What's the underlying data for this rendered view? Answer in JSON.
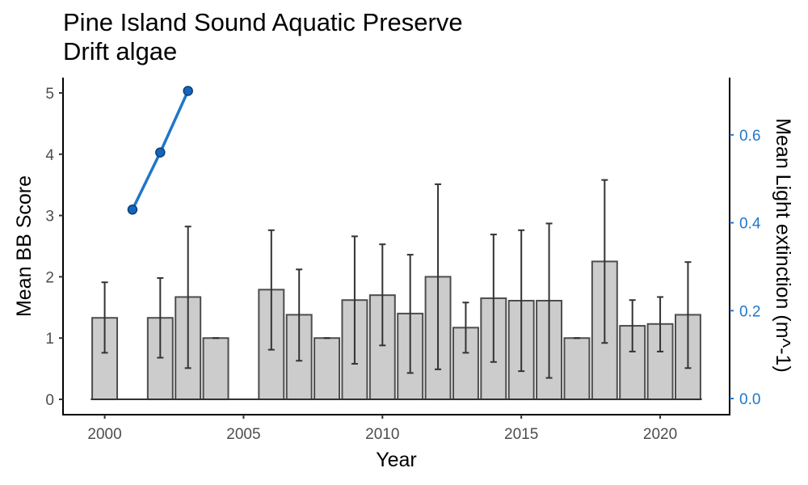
{
  "chart_data": {
    "type": "bar",
    "title": "Pine Island Sound Aquatic Preserve",
    "subtitle": "Drift algae",
    "xlabel": "Year",
    "ylabel": "Mean BB Score",
    "y2label": "Mean Light extinction (m^-1)",
    "xlim": [
      1998.5,
      2022.5
    ],
    "ylim": [
      -0.25,
      5.25
    ],
    "y2lim": [
      -0.0367,
      0.7303
    ],
    "x_ticks": [
      "2000",
      "2005",
      "2010",
      "2015",
      "2020"
    ],
    "y_ticks": [
      "0",
      "1",
      "2",
      "3",
      "4",
      "5"
    ],
    "y2_ticks": [
      "0.0",
      "0.2",
      "0.4",
      "0.6"
    ],
    "grid": false,
    "colors": {
      "bar_fill": "#cccccc",
      "bar_stroke": "#4d4d4d",
      "errorbar": "#333333",
      "line": "#1f77c9",
      "point_fill": "#1565c0",
      "point_stroke": "#0d3f73",
      "right_axis": "#1f77c9"
    },
    "bars": [
      {
        "year": 2000,
        "mean": 1.33,
        "lo": 0.76,
        "hi": 1.91
      },
      {
        "year": 2002,
        "mean": 1.33,
        "lo": 0.68,
        "hi": 1.98
      },
      {
        "year": 2003,
        "mean": 1.67,
        "lo": 0.51,
        "hi": 2.82
      },
      {
        "year": 2004,
        "mean": 1.0,
        "lo": 1.0,
        "hi": 1.0
      },
      {
        "year": 2006,
        "mean": 1.79,
        "lo": 0.81,
        "hi": 2.76
      },
      {
        "year": 2007,
        "mean": 1.38,
        "lo": 0.63,
        "hi": 2.12
      },
      {
        "year": 2008,
        "mean": 1.0,
        "lo": 1.0,
        "hi": 1.0
      },
      {
        "year": 2009,
        "mean": 1.62,
        "lo": 0.58,
        "hi": 2.66
      },
      {
        "year": 2010,
        "mean": 1.7,
        "lo": 0.88,
        "hi": 2.53
      },
      {
        "year": 2011,
        "mean": 1.4,
        "lo": 0.43,
        "hi": 2.36
      },
      {
        "year": 2012,
        "mean": 2.0,
        "lo": 0.49,
        "hi": 3.51
      },
      {
        "year": 2013,
        "mean": 1.17,
        "lo": 0.76,
        "hi": 1.58
      },
      {
        "year": 2014,
        "mean": 1.65,
        "lo": 0.61,
        "hi": 2.69
      },
      {
        "year": 2015,
        "mean": 1.61,
        "lo": 0.46,
        "hi": 2.76
      },
      {
        "year": 2016,
        "mean": 1.61,
        "lo": 0.35,
        "hi": 2.87
      },
      {
        "year": 2017,
        "mean": 1.0,
        "lo": 1.0,
        "hi": 1.0
      },
      {
        "year": 2018,
        "mean": 2.25,
        "lo": 0.92,
        "hi": 3.58
      },
      {
        "year": 2019,
        "mean": 1.2,
        "lo": 0.78,
        "hi": 1.62
      },
      {
        "year": 2020,
        "mean": 1.23,
        "lo": 0.78,
        "hi": 1.67
      },
      {
        "year": 2021,
        "mean": 1.38,
        "lo": 0.51,
        "hi": 2.24
      }
    ],
    "line_series": [
      {
        "year": 2001,
        "value": 0.43
      },
      {
        "year": 2002,
        "value": 0.56
      },
      {
        "year": 2003,
        "value": 0.7
      }
    ]
  }
}
